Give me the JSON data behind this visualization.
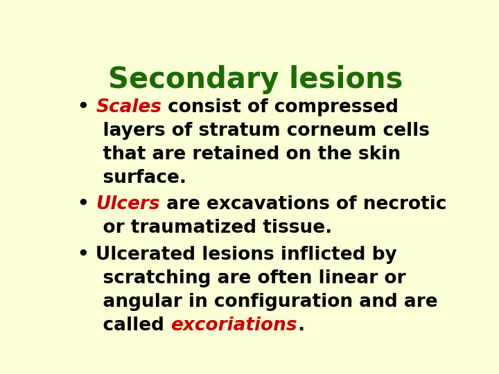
{
  "title": "Secondary lesions",
  "title_color": "#1a6b00",
  "background_color": "#faffd6",
  "bullet_color": "#000000",
  "bullet_char": "•",
  "body_fontsize": 19,
  "title_fontsize": 30,
  "figsize": [
    7.2,
    5.4
  ],
  "dpi": 100,
  "lines": [
    [
      {
        "text": "• ",
        "color": "#000000",
        "bold": true,
        "italic": false
      },
      {
        "text": "Scales",
        "color": "#cc0000",
        "bold": true,
        "italic": true
      },
      {
        "text": " consist of compressed",
        "color": "#000000",
        "bold": true,
        "italic": false
      }
    ],
    [
      {
        "text": "    layers of stratum corneum cells",
        "color": "#000000",
        "bold": true,
        "italic": false
      }
    ],
    [
      {
        "text": "    that are retained on the skin",
        "color": "#000000",
        "bold": true,
        "italic": false
      }
    ],
    [
      {
        "text": "    surface.",
        "color": "#000000",
        "bold": true,
        "italic": false
      }
    ],
    [
      {
        "text": "• ",
        "color": "#000000",
        "bold": true,
        "italic": false
      },
      {
        "text": "Ulcers",
        "color": "#cc0000",
        "bold": true,
        "italic": true
      },
      {
        "text": " are excavations of necrotic",
        "color": "#000000",
        "bold": true,
        "italic": false
      }
    ],
    [
      {
        "text": "    or traumatized tissue.",
        "color": "#000000",
        "bold": true,
        "italic": false
      }
    ],
    [
      {
        "text": "• Ulcerated lesions inflicted by",
        "color": "#000000",
        "bold": true,
        "italic": false
      }
    ],
    [
      {
        "text": "    scratching are often linear or",
        "color": "#000000",
        "bold": true,
        "italic": false
      }
    ],
    [
      {
        "text": "    angular in configuration and are",
        "color": "#000000",
        "bold": true,
        "italic": false
      }
    ],
    [
      {
        "text": "    called ",
        "color": "#000000",
        "bold": true,
        "italic": false
      },
      {
        "text": "excoriations",
        "color": "#cc0000",
        "bold": true,
        "italic": true
      },
      {
        "text": ".",
        "color": "#000000",
        "bold": true,
        "italic": false
      }
    ]
  ]
}
